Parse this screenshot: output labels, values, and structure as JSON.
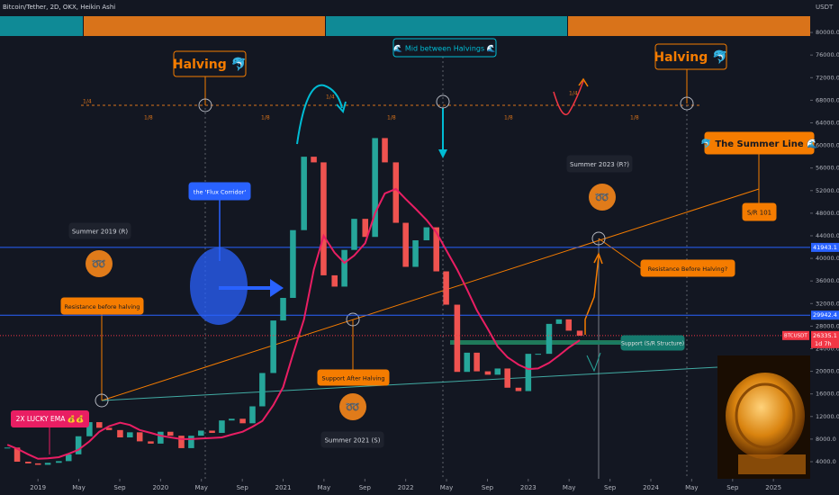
{
  "chart_data": {
    "type": "candlestick",
    "title": "Bitcoin/Tether, 2D, OKX, Heikin Ashi",
    "y_unit": "USDT",
    "x": [
      2018.75,
      2018.83,
      2018.92,
      2019.0,
      2019.08,
      2019.17,
      2019.25,
      2019.33,
      2019.42,
      2019.5,
      2019.58,
      2019.67,
      2019.75,
      2019.83,
      2019.92,
      2020.0,
      2020.08,
      2020.17,
      2020.25,
      2020.33,
      2020.42,
      2020.5,
      2020.58,
      2020.67,
      2020.75,
      2020.83,
      2020.92,
      2021.0,
      2021.08,
      2021.17,
      2021.25,
      2021.33,
      2021.42,
      2021.5,
      2021.58,
      2021.67,
      2021.75,
      2021.83,
      2021.92,
      2022.0,
      2022.08,
      2022.17,
      2022.25,
      2022.33,
      2022.42,
      2022.5,
      2022.58,
      2022.67,
      2022.75,
      2022.83,
      2022.92,
      2023.0,
      2023.08,
      2023.17,
      2023.25,
      2023.33,
      2023.42
    ],
    "series": [
      {
        "name": "BTCUSDT",
        "color_up": "#26a69a",
        "color_down": "#ef5350",
        "values": [
          6500,
          4000,
          3700,
          3450,
          3800,
          4100,
          5300,
          8500,
          11000,
          10000,
          9600,
          8300,
          9200,
          7600,
          7200,
          9300,
          8600,
          6400,
          8600,
          9500,
          9100,
          11300,
          11600,
          10800,
          13800,
          19700,
          29000,
          33000,
          45000,
          58000,
          57000,
          37000,
          35000,
          41500,
          47000,
          43800,
          61300,
          57000,
          46300,
          38500,
          43200,
          45500,
          37700,
          31800,
          19900,
          23300,
          20000,
          19400,
          20500,
          17100,
          16500,
          23100,
          23100,
          28400,
          29200,
          27200,
          26300
        ]
      },
      {
        "name": "2X LUCKY EMA 💰💰",
        "color": "#e91e63",
        "values": [
          7000,
          6300,
          5300,
          4500,
          4600,
          4800,
          5400,
          6100,
          7600,
          9300,
          10300,
          10900,
          10500,
          9600,
          9100,
          8600,
          8300,
          8000,
          8000,
          8100,
          8200,
          8300,
          8800,
          9300,
          10200,
          11200,
          14000,
          17200,
          23000,
          29200,
          38000,
          44000,
          41000,
          39200,
          40500,
          42700,
          48000,
          51500,
          52300,
          50500,
          48800,
          46800,
          44600,
          41500,
          38000,
          34500,
          30800,
          27500,
          24400,
          22500,
          21200,
          20400,
          20500,
          21500,
          22800,
          24200,
          25500
        ]
      }
    ],
    "xlim": [
      2018.69,
      2025.3
    ],
    "xticks": [
      2019,
      {
        "value": 2019.333,
        "label": "May"
      },
      {
        "value": 2019.667,
        "label": "Sep"
      },
      2020,
      {
        "value": 2020.333,
        "label": "May"
      },
      {
        "value": 2020.667,
        "label": "Sep"
      },
      2021,
      {
        "value": 2021.333,
        "label": "May"
      },
      {
        "value": 2021.667,
        "label": "Sep"
      },
      2022,
      {
        "value": 2022.333,
        "label": "May"
      },
      {
        "value": 2022.667,
        "label": "Sep"
      },
      2023,
      {
        "value": 2023.333,
        "label": "May"
      },
      {
        "value": 2023.667,
        "label": "Sep"
      },
      2024,
      {
        "value": 2024.333,
        "label": "May"
      },
      {
        "value": 2024.667,
        "label": "Sep"
      },
      2025
    ],
    "ylim": [
      970,
      85750
    ],
    "yticks": [
      {
        "value": 4000,
        "label": "4000.0"
      },
      {
        "value": 8000,
        "label": "8000.0"
      },
      {
        "value": 12000,
        "label": "12000.0"
      },
      {
        "value": 16000,
        "label": "16000.0"
      },
      {
        "value": 20000,
        "label": "20000.0"
      },
      {
        "value": 24000,
        "label": "24000.0"
      },
      {
        "value": 28000,
        "label": "28000.0"
      },
      {
        "value": 32000,
        "label": "32000.0"
      },
      {
        "value": 36000,
        "label": "36000.0"
      },
      {
        "value": 40000,
        "label": "40000.0"
      },
      {
        "value": 44000,
        "label": "44000.0"
      },
      {
        "value": 48000,
        "label": "48000.0"
      },
      {
        "value": 52000,
        "label": "52000.0"
      },
      {
        "value": 56000,
        "label": "56000.0"
      },
      {
        "value": 60000,
        "label": "60000.0"
      },
      {
        "value": 64000,
        "label": "64000.0"
      },
      {
        "value": 68000,
        "label": "68000.0"
      },
      {
        "value": 72000,
        "label": "72000.0"
      },
      {
        "value": 76000,
        "label": "76000.0"
      },
      {
        "value": 80000,
        "label": "80000.0"
      }
    ],
    "grid": false,
    "levels": [
      41943.1,
      29942.4
    ],
    "level_color": "#2962ff",
    "last_price": 26335.1,
    "countdown": "1d 7h",
    "annotations": [
      "Halving 🐬",
      "🌊 Mid between Halvings 🌊",
      "Halving 🐬",
      "🐬 The Summer Line 🌊",
      "S/R 101",
      "Summer 2023 (R?)",
      "Resistance Before Halving?",
      "Support (S/R Structure)",
      "Support After Halving",
      "Summer 2021 (S)",
      "Summer 2019 (R)",
      "Resistance before halving",
      "the 'Flux Corridor'"
    ],
    "fraction_labels": [
      "1/4",
      "1/8",
      "1/8",
      "1/4",
      "1/8",
      "1/8",
      "1/4",
      "1/8"
    ],
    "icons": [
      "➿",
      "➿",
      "➿"
    ]
  }
}
